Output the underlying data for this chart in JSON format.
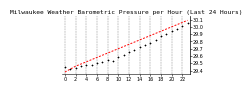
{
  "title": "Milwaukee Weather Barometric Pressure per Hour (Last 24 Hours)",
  "x_values": [
    0,
    1,
    2,
    3,
    4,
    5,
    6,
    7,
    8,
    9,
    10,
    11,
    12,
    13,
    14,
    15,
    16,
    17,
    18,
    19,
    20,
    21,
    22,
    23
  ],
  "y_values": [
    29.45,
    29.42,
    29.44,
    29.46,
    29.48,
    29.47,
    29.5,
    29.52,
    29.55,
    29.53,
    29.58,
    29.62,
    29.65,
    29.68,
    29.72,
    29.75,
    29.78,
    29.82,
    29.87,
    29.9,
    29.94,
    29.97,
    30.01,
    30.05
  ],
  "trend_y": [
    29.38,
    29.42,
    29.46,
    29.49,
    29.52,
    29.55,
    29.58,
    29.61,
    29.64,
    29.67,
    29.7,
    29.73,
    29.76,
    29.79,
    29.82,
    29.85,
    29.88,
    29.91,
    29.94,
    29.97,
    30.0,
    30.03,
    30.06,
    30.09
  ],
  "ylim": [
    29.35,
    30.15
  ],
  "ytick_vals": [
    29.4,
    29.5,
    29.6,
    29.7,
    29.8,
    29.9,
    30.0,
    30.1
  ],
  "ytick_labels": [
    "29.4",
    "29.5",
    "29.6",
    "29.7",
    "29.8",
    "29.9",
    "30.0",
    "30.1"
  ],
  "xtick_vals": [
    0,
    2,
    4,
    6,
    8,
    10,
    12,
    14,
    16,
    18,
    20,
    22
  ],
  "xtick_labels": [
    "0",
    "2",
    "4",
    "6",
    "8",
    "10",
    "12",
    "14",
    "16",
    "18",
    "20",
    "22"
  ],
  "background_color": "#ffffff",
  "marker_color": "#000000",
  "trend_color": "#ff0000",
  "grid_color": "#888888",
  "title_fontsize": 4.5,
  "tick_fontsize": 3.5,
  "marker_size": 1.5,
  "trend_linewidth": 0.7,
  "grid_linewidth": 0.35
}
